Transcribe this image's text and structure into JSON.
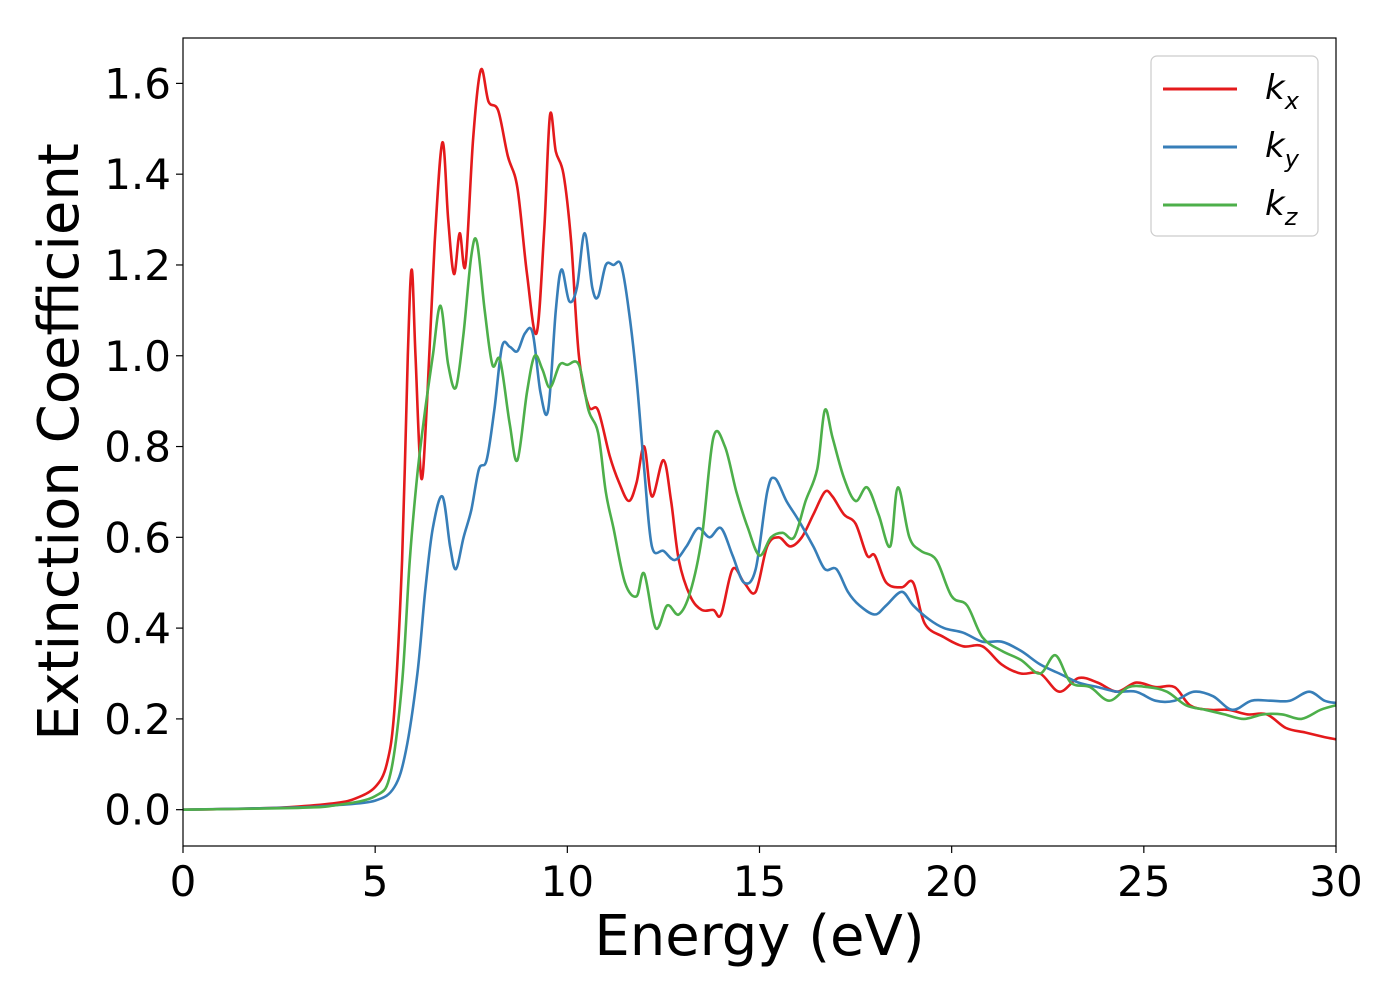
{
  "chart_data": {
    "type": "line",
    "xlabel": "Energy (eV)",
    "ylabel": "Extinction Coefficient",
    "xlim": [
      0,
      30
    ],
    "ylim": [
      -0.08,
      1.7
    ],
    "xticks": [
      0,
      5,
      10,
      15,
      20,
      25,
      30
    ],
    "xtick_labels": [
      "0",
      "5",
      "10",
      "15",
      "20",
      "25",
      "30"
    ],
    "yticks": [
      0.0,
      0.2,
      0.4,
      0.6,
      0.8,
      1.0,
      1.2,
      1.4,
      1.6
    ],
    "ytick_labels": [
      "0.0",
      "0.2",
      "0.4",
      "0.6",
      "0.8",
      "1.0",
      "1.2",
      "1.4",
      "1.6"
    ],
    "grid": false,
    "legend_position": "top-right",
    "series": [
      {
        "name": "k",
        "subscript": "x",
        "color": "#e41a1c",
        "points": [
          [
            0,
            0
          ],
          [
            2,
            0.003
          ],
          [
            3,
            0.007
          ],
          [
            4,
            0.015
          ],
          [
            4.5,
            0.025
          ],
          [
            5,
            0.05
          ],
          [
            5.3,
            0.1
          ],
          [
            5.5,
            0.22
          ],
          [
            5.7,
            0.55
          ],
          [
            5.85,
            1.0
          ],
          [
            5.95,
            1.19
          ],
          [
            6.05,
            1.0
          ],
          [
            6.2,
            0.73
          ],
          [
            6.35,
            0.9
          ],
          [
            6.55,
            1.25
          ],
          [
            6.75,
            1.47
          ],
          [
            6.9,
            1.3
          ],
          [
            7.05,
            1.18
          ],
          [
            7.2,
            1.27
          ],
          [
            7.35,
            1.2
          ],
          [
            7.55,
            1.48
          ],
          [
            7.75,
            1.63
          ],
          [
            7.95,
            1.56
          ],
          [
            8.2,
            1.54
          ],
          [
            8.45,
            1.44
          ],
          [
            8.7,
            1.37
          ],
          [
            8.95,
            1.18
          ],
          [
            9.2,
            1.05
          ],
          [
            9.4,
            1.28
          ],
          [
            9.55,
            1.53
          ],
          [
            9.7,
            1.45
          ],
          [
            9.9,
            1.4
          ],
          [
            10.1,
            1.25
          ],
          [
            10.3,
            1.0
          ],
          [
            10.55,
            0.89
          ],
          [
            10.8,
            0.88
          ],
          [
            11.1,
            0.78
          ],
          [
            11.35,
            0.72
          ],
          [
            11.6,
            0.68
          ],
          [
            11.8,
            0.72
          ],
          [
            12.0,
            0.8
          ],
          [
            12.2,
            0.69
          ],
          [
            12.5,
            0.77
          ],
          [
            12.7,
            0.68
          ],
          [
            12.9,
            0.55
          ],
          [
            13.2,
            0.47
          ],
          [
            13.5,
            0.44
          ],
          [
            13.8,
            0.44
          ],
          [
            14.0,
            0.43
          ],
          [
            14.3,
            0.53
          ],
          [
            14.6,
            0.5
          ],
          [
            14.9,
            0.48
          ],
          [
            15.2,
            0.58
          ],
          [
            15.5,
            0.6
          ],
          [
            15.8,
            0.58
          ],
          [
            16.1,
            0.6
          ],
          [
            16.4,
            0.65
          ],
          [
            16.7,
            0.7
          ],
          [
            16.9,
            0.69
          ],
          [
            17.2,
            0.65
          ],
          [
            17.5,
            0.63
          ],
          [
            17.8,
            0.56
          ],
          [
            18.0,
            0.56
          ],
          [
            18.3,
            0.5
          ],
          [
            18.7,
            0.49
          ],
          [
            19.0,
            0.5
          ],
          [
            19.3,
            0.41
          ],
          [
            19.8,
            0.38
          ],
          [
            20.3,
            0.36
          ],
          [
            20.8,
            0.36
          ],
          [
            21.3,
            0.32
          ],
          [
            21.8,
            0.3
          ],
          [
            22.3,
            0.3
          ],
          [
            22.8,
            0.26
          ],
          [
            23.3,
            0.29
          ],
          [
            23.8,
            0.28
          ],
          [
            24.3,
            0.26
          ],
          [
            24.8,
            0.28
          ],
          [
            25.3,
            0.27
          ],
          [
            25.8,
            0.27
          ],
          [
            26.2,
            0.23
          ],
          [
            26.7,
            0.22
          ],
          [
            27.2,
            0.22
          ],
          [
            27.7,
            0.21
          ],
          [
            28.2,
            0.21
          ],
          [
            28.7,
            0.18
          ],
          [
            29.2,
            0.17
          ],
          [
            29.7,
            0.16
          ],
          [
            30,
            0.155
          ]
        ]
      },
      {
        "name": "k",
        "subscript": "y",
        "color": "#377eb8",
        "points": [
          [
            0,
            0
          ],
          [
            3,
            0.005
          ],
          [
            4,
            0.01
          ],
          [
            5,
            0.02
          ],
          [
            5.5,
            0.05
          ],
          [
            5.8,
            0.13
          ],
          [
            6.1,
            0.3
          ],
          [
            6.3,
            0.48
          ],
          [
            6.5,
            0.62
          ],
          [
            6.75,
            0.69
          ],
          [
            6.95,
            0.58
          ],
          [
            7.1,
            0.53
          ],
          [
            7.3,
            0.6
          ],
          [
            7.5,
            0.66
          ],
          [
            7.7,
            0.75
          ],
          [
            7.9,
            0.77
          ],
          [
            8.1,
            0.88
          ],
          [
            8.3,
            1.02
          ],
          [
            8.5,
            1.02
          ],
          [
            8.7,
            1.01
          ],
          [
            8.9,
            1.05
          ],
          [
            9.1,
            1.05
          ],
          [
            9.3,
            0.92
          ],
          [
            9.5,
            0.88
          ],
          [
            9.7,
            1.1
          ],
          [
            9.85,
            1.19
          ],
          [
            10.05,
            1.12
          ],
          [
            10.25,
            1.15
          ],
          [
            10.45,
            1.27
          ],
          [
            10.65,
            1.15
          ],
          [
            10.8,
            1.13
          ],
          [
            11.0,
            1.2
          ],
          [
            11.2,
            1.2
          ],
          [
            11.4,
            1.2
          ],
          [
            11.6,
            1.1
          ],
          [
            11.8,
            0.95
          ],
          [
            12.0,
            0.75
          ],
          [
            12.2,
            0.58
          ],
          [
            12.5,
            0.57
          ],
          [
            12.8,
            0.55
          ],
          [
            13.1,
            0.58
          ],
          [
            13.4,
            0.62
          ],
          [
            13.7,
            0.6
          ],
          [
            14.0,
            0.62
          ],
          [
            14.3,
            0.56
          ],
          [
            14.6,
            0.5
          ],
          [
            14.9,
            0.53
          ],
          [
            15.2,
            0.7
          ],
          [
            15.4,
            0.73
          ],
          [
            15.7,
            0.68
          ],
          [
            16.0,
            0.64
          ],
          [
            16.4,
            0.58
          ],
          [
            16.7,
            0.53
          ],
          [
            17.0,
            0.53
          ],
          [
            17.3,
            0.48
          ],
          [
            17.6,
            0.45
          ],
          [
            18.0,
            0.43
          ],
          [
            18.3,
            0.45
          ],
          [
            18.7,
            0.48
          ],
          [
            19.0,
            0.45
          ],
          [
            19.4,
            0.42
          ],
          [
            19.8,
            0.4
          ],
          [
            20.3,
            0.39
          ],
          [
            20.8,
            0.37
          ],
          [
            21.3,
            0.37
          ],
          [
            21.8,
            0.35
          ],
          [
            22.3,
            0.32
          ],
          [
            22.8,
            0.3
          ],
          [
            23.3,
            0.28
          ],
          [
            23.8,
            0.27
          ],
          [
            24.3,
            0.26
          ],
          [
            24.8,
            0.26
          ],
          [
            25.3,
            0.24
          ],
          [
            25.8,
            0.24
          ],
          [
            26.3,
            0.26
          ],
          [
            26.8,
            0.25
          ],
          [
            27.3,
            0.22
          ],
          [
            27.8,
            0.24
          ],
          [
            28.3,
            0.24
          ],
          [
            28.8,
            0.24
          ],
          [
            29.3,
            0.26
          ],
          [
            29.7,
            0.24
          ],
          [
            30,
            0.235
          ]
        ]
      },
      {
        "name": "k",
        "subscript": "z",
        "color": "#4daf4a",
        "points": [
          [
            0,
            0
          ],
          [
            3,
            0.004
          ],
          [
            4,
            0.01
          ],
          [
            5,
            0.03
          ],
          [
            5.4,
            0.08
          ],
          [
            5.7,
            0.28
          ],
          [
            5.9,
            0.55
          ],
          [
            6.1,
            0.74
          ],
          [
            6.3,
            0.88
          ],
          [
            6.5,
            1.0
          ],
          [
            6.7,
            1.11
          ],
          [
            6.9,
            0.98
          ],
          [
            7.1,
            0.93
          ],
          [
            7.3,
            1.05
          ],
          [
            7.5,
            1.22
          ],
          [
            7.65,
            1.25
          ],
          [
            7.85,
            1.1
          ],
          [
            8.05,
            0.98
          ],
          [
            8.25,
            0.99
          ],
          [
            8.5,
            0.85
          ],
          [
            8.7,
            0.77
          ],
          [
            8.95,
            0.92
          ],
          [
            9.15,
            1.0
          ],
          [
            9.35,
            0.97
          ],
          [
            9.55,
            0.93
          ],
          [
            9.8,
            0.98
          ],
          [
            10.0,
            0.98
          ],
          [
            10.3,
            0.98
          ],
          [
            10.55,
            0.88
          ],
          [
            10.8,
            0.83
          ],
          [
            11.0,
            0.7
          ],
          [
            11.2,
            0.62
          ],
          [
            11.5,
            0.5
          ],
          [
            11.8,
            0.47
          ],
          [
            12.0,
            0.52
          ],
          [
            12.3,
            0.4
          ],
          [
            12.6,
            0.45
          ],
          [
            12.9,
            0.43
          ],
          [
            13.2,
            0.48
          ],
          [
            13.5,
            0.6
          ],
          [
            13.8,
            0.82
          ],
          [
            14.1,
            0.8
          ],
          [
            14.4,
            0.7
          ],
          [
            14.7,
            0.62
          ],
          [
            15.0,
            0.56
          ],
          [
            15.3,
            0.6
          ],
          [
            15.6,
            0.61
          ],
          [
            15.9,
            0.6
          ],
          [
            16.2,
            0.68
          ],
          [
            16.5,
            0.75
          ],
          [
            16.7,
            0.88
          ],
          [
            16.9,
            0.82
          ],
          [
            17.2,
            0.73
          ],
          [
            17.5,
            0.68
          ],
          [
            17.8,
            0.71
          ],
          [
            18.1,
            0.65
          ],
          [
            18.4,
            0.58
          ],
          [
            18.6,
            0.71
          ],
          [
            18.9,
            0.6
          ],
          [
            19.2,
            0.57
          ],
          [
            19.6,
            0.55
          ],
          [
            20.0,
            0.47
          ],
          [
            20.4,
            0.45
          ],
          [
            20.8,
            0.38
          ],
          [
            21.3,
            0.35
          ],
          [
            21.8,
            0.33
          ],
          [
            22.3,
            0.3
          ],
          [
            22.7,
            0.34
          ],
          [
            23.1,
            0.28
          ],
          [
            23.6,
            0.27
          ],
          [
            24.1,
            0.24
          ],
          [
            24.6,
            0.27
          ],
          [
            25.1,
            0.27
          ],
          [
            25.6,
            0.26
          ],
          [
            26.1,
            0.23
          ],
          [
            26.6,
            0.22
          ],
          [
            27.1,
            0.21
          ],
          [
            27.6,
            0.2
          ],
          [
            28.1,
            0.21
          ],
          [
            28.6,
            0.21
          ],
          [
            29.1,
            0.2
          ],
          [
            29.6,
            0.22
          ],
          [
            30,
            0.23
          ]
        ]
      }
    ]
  }
}
